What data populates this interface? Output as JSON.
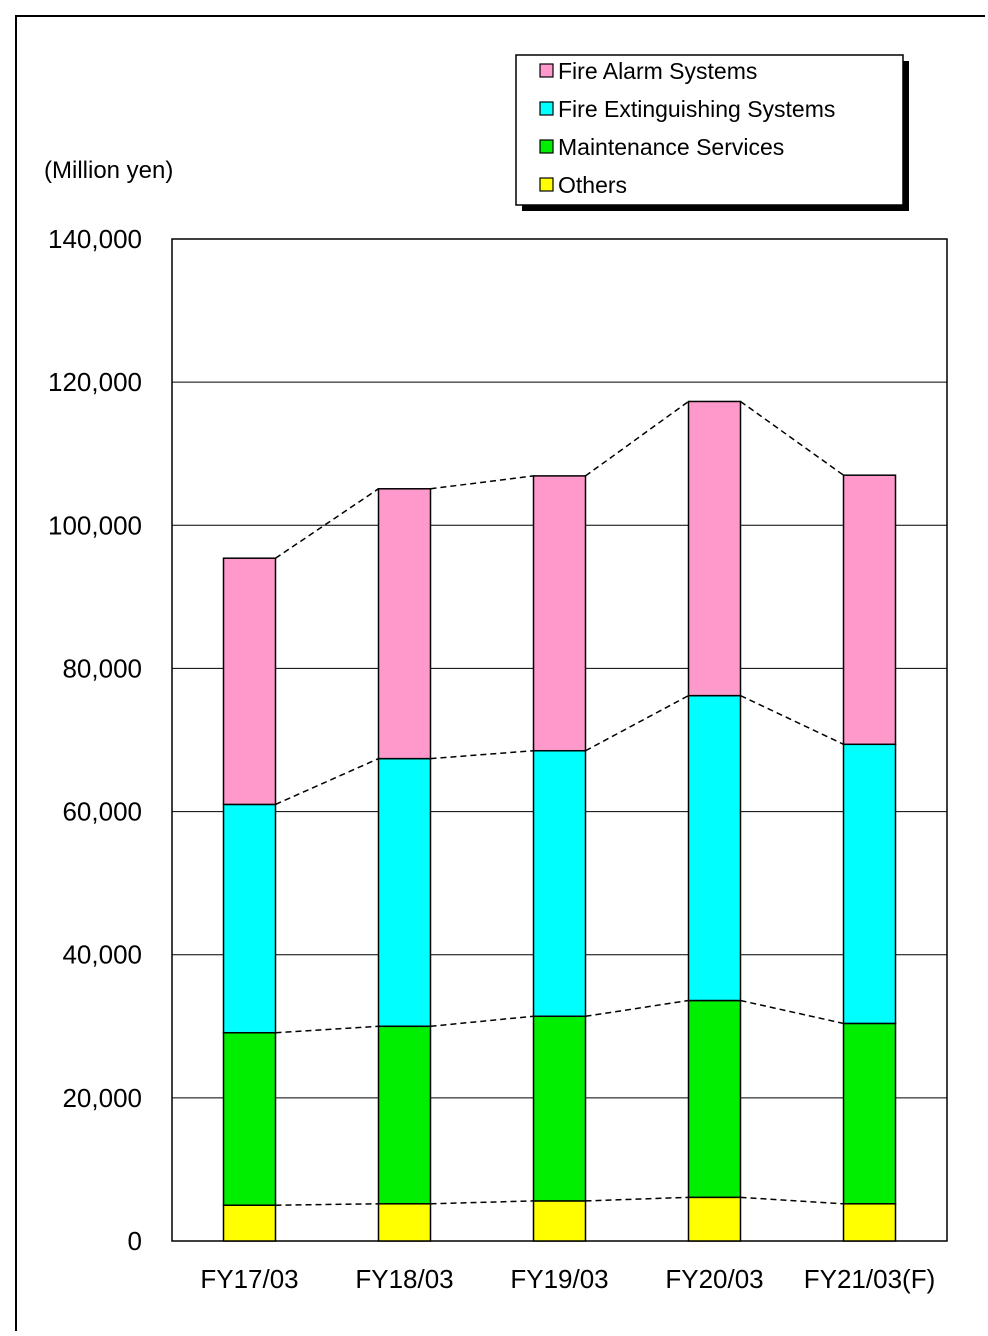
{
  "chart_data": {
    "type": "bar",
    "stacked": true,
    "ylabel": "(Million yen)",
    "ylim": [
      0,
      140000
    ],
    "yticks": [
      0,
      20000,
      40000,
      60000,
      80000,
      100000,
      120000,
      140000
    ],
    "ytick_labels": [
      "0",
      "20,000",
      "40,000",
      "60,000",
      "80,000",
      "100,000",
      "120,000",
      "140,000"
    ],
    "grid": true,
    "legend_position": "top-right",
    "categories": [
      "FY17/03",
      "FY18/03",
      "FY19/03",
      "FY20/03",
      "FY21/03(F)"
    ],
    "series": [
      {
        "name": "Others",
        "color": "#ffff00",
        "values": [
          5000,
          5200,
          5600,
          6100,
          5200
        ]
      },
      {
        "name": "Maintenance Services",
        "color": "#00ee00",
        "values": [
          24100,
          24800,
          25800,
          27500,
          25200
        ]
      },
      {
        "name": "Fire Extinguishing Systems",
        "color": "#00ffff",
        "values": [
          31900,
          37400,
          37100,
          42600,
          39000
        ]
      },
      {
        "name": "Fire Alarm Systems",
        "color": "#ff99cc",
        "values": [
          34400,
          37700,
          38400,
          41100,
          37600
        ]
      }
    ],
    "legend_order": [
      "Fire Alarm Systems",
      "Fire Extinguishing Systems",
      "Maintenance Services",
      "Others"
    ]
  }
}
